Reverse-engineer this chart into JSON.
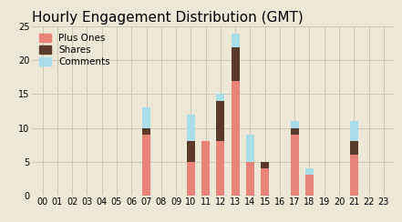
{
  "title": "Hourly Engagement Distribution (GMT)",
  "hours": [
    "00",
    "01",
    "02",
    "03",
    "04",
    "05",
    "06",
    "07",
    "08",
    "09",
    "10",
    "11",
    "12",
    "13",
    "14",
    "15",
    "16",
    "17",
    "18",
    "19",
    "20",
    "21",
    "22",
    "23"
  ],
  "plus_ones": [
    0,
    0,
    0,
    0,
    0,
    0,
    0,
    9,
    0,
    0,
    5,
    8,
    8,
    17,
    5,
    4,
    0,
    9,
    3,
    0,
    0,
    6,
    0,
    0
  ],
  "shares": [
    0,
    0,
    0,
    0,
    0,
    0,
    0,
    1,
    0,
    0,
    3,
    0,
    6,
    5,
    0,
    1,
    0,
    1,
    0,
    0,
    0,
    2,
    0,
    0
  ],
  "comments": [
    0,
    0,
    0,
    0,
    0,
    0,
    0,
    3,
    0,
    0,
    4,
    0,
    1,
    2,
    4,
    0,
    0,
    1,
    1,
    0,
    0,
    3,
    0,
    0
  ],
  "color_plus_ones": "#e8837a",
  "color_shares": "#5a3a2a",
  "color_comments": "#aadde8",
  "background_color": "#ede8d5",
  "grid_color": "#ccc8b0",
  "ylim": [
    0,
    25
  ],
  "yticks": [
    0,
    5,
    10,
    15,
    20,
    25
  ],
  "title_fontsize": 11,
  "tick_fontsize": 7,
  "legend_fontsize": 7.5
}
